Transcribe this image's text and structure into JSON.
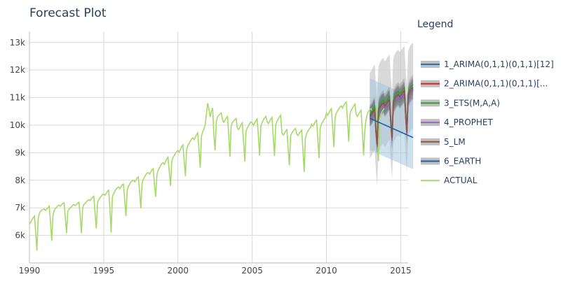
{
  "chart_data": {
    "type": "line",
    "title": "Forecast Plot",
    "xlabel": "",
    "ylabel": "",
    "xlim": [
      1990,
      2015.5
    ],
    "ylim": [
      5000,
      13400
    ],
    "x_ticks": [
      1990,
      1995,
      2000,
      2005,
      2010,
      2015
    ],
    "x_tick_labels": [
      "1990",
      "1995",
      "2000",
      "2005",
      "2010",
      "2015"
    ],
    "y_ticks": [
      6000,
      7000,
      8000,
      9000,
      10000,
      11000,
      12000,
      13000
    ],
    "y_tick_labels": [
      "6k",
      "7k",
      "8k",
      "9k",
      "10k",
      "11k",
      "12k",
      "13k"
    ],
    "grid": true,
    "legend_title": "Legend",
    "legend_position": "right",
    "colors": {
      "arima1": "#1f77b4",
      "arima2": "#d62728",
      "ets": "#2ca02c",
      "prophet": "#9467bd",
      "lm": "#8c564b",
      "earth": "#1f5fa8",
      "actual": "#a6d96a"
    },
    "legend": [
      {
        "key": "arima1",
        "label": "1_ARIMA(0,1,1)(0,1,1)[12]"
      },
      {
        "key": "arima2",
        "label": "2_ARIMA(0,1,1)(0,1,1)[..."
      },
      {
        "key": "ets",
        "label": "3_ETS(M,A,A)"
      },
      {
        "key": "prophet",
        "label": "4_PROPHET"
      },
      {
        "key": "lm",
        "label": "5_LM"
      },
      {
        "key": "earth",
        "label": "6_EARTH"
      },
      {
        "key": "actual",
        "label": "ACTUAL"
      }
    ],
    "actual": {
      "name": "ACTUAL",
      "x_start": 1990.0,
      "step": 0.0833333,
      "values": [
        6400,
        6480,
        6560,
        6640,
        6700,
        6160,
        5450,
        6600,
        6800,
        6880,
        6920,
        6940,
        6960,
        6900,
        6960,
        7000,
        7060,
        6480,
        5800,
        6720,
        6900,
        6980,
        7020,
        7080,
        7100,
        7060,
        7120,
        7160,
        7180,
        6620,
        6080,
        6860,
        6960,
        7000,
        7040,
        7100,
        7120,
        7080,
        7120,
        7180,
        7200,
        6700,
        6080,
        7000,
        7120,
        7160,
        7220,
        7260,
        7300,
        7260,
        7320,
        7380,
        7420,
        6820,
        6250,
        7180,
        7300,
        7360,
        7420,
        7480,
        7500,
        7460,
        7520,
        7600,
        7640,
        7000,
        6100,
        7380,
        7520,
        7600,
        7680,
        7720,
        7760,
        7700,
        7760,
        7840,
        7860,
        7260,
        6700,
        7640,
        7780,
        7860,
        7940,
        7980,
        8000,
        7940,
        8000,
        8080,
        8120,
        7560,
        6980,
        7900,
        8040,
        8120,
        8200,
        8260,
        8280,
        8220,
        8300,
        8380,
        8420,
        7860,
        7400,
        8200,
        8360,
        8440,
        8540,
        8600,
        8640,
        8580,
        8680,
        8780,
        8840,
        8300,
        7800,
        8680,
        8820,
        8900,
        8980,
        9040,
        9080,
        9020,
        9120,
        9220,
        9280,
        8700,
        8150,
        9100,
        9260,
        9340,
        9420,
        9500,
        9540,
        9480,
        9560,
        9660,
        9720,
        9100,
        8460,
        9600,
        9760,
        9860,
        10000,
        10420,
        10800,
        10600,
        10300,
        10500,
        10620,
        9700,
        9080,
        10140,
        10300,
        10360,
        10400,
        10440,
        10200,
        10100,
        10180,
        10260,
        10320,
        9680,
        8850,
        9960,
        10100,
        10160,
        10200,
        10240,
        9900,
        9840,
        9920,
        10020,
        10080,
        9400,
        8680,
        9760,
        9900,
        9980,
        10060,
        10120,
        10080,
        10000,
        10080,
        10160,
        10220,
        9600,
        8900,
        9960,
        10100,
        10180,
        10260,
        10320,
        10140,
        10060,
        10140,
        10220,
        10280,
        9600,
        8880,
        10000,
        10140,
        10220,
        10300,
        10360,
        9720,
        9640,
        9700,
        9780,
        9840,
        9200,
        8540,
        9600,
        9720,
        9780,
        9840,
        9880,
        9680,
        9620,
        9700,
        9760,
        9820,
        9100,
        8300,
        9540,
        9700,
        9780,
        9860,
        9900,
        10040,
        9960,
        10040,
        10120,
        10180,
        9520,
        8800,
        9900,
        10040,
        10120,
        10200,
        10260,
        10440,
        10360,
        10440,
        10540,
        10600,
        9900,
        9200,
        10280,
        10440,
        10520,
        10600,
        10660,
        10700,
        10620,
        10720,
        10800,
        10840,
        10200,
        9400,
        10400,
        10540,
        10620,
        10700,
        10760,
        10400,
        10320,
        10400,
        10480,
        10540,
        9800,
        8900,
        9800,
        10200,
        10400,
        10500,
        10560,
        10600,
        10500,
        10580,
        10640,
        10680,
        9900,
        8700,
        10200,
        10400,
        10500,
        10560,
        10620
      ]
    },
    "forecast": {
      "x_start": 2012.9167,
      "step": 0.0833333,
      "series": [
        {
          "name": "1_ARIMA(0,1,1)(0,1,1)[12]",
          "key": "arima1",
          "values": [
            10350,
            10380,
            10450,
            10550,
            10600,
            9800,
            9300,
            10500,
            10650,
            10720,
            10780,
            10820,
            10700,
            10720,
            10800,
            10880,
            10920,
            10100,
            9500,
            10750,
            10900,
            10980,
            11040,
            11080,
            11000,
            11020,
            11080,
            11150,
            11200,
            10350,
            9700,
            11000,
            11150,
            11220,
            11280,
            11320
          ]
        },
        {
          "name": "2_ARIMA(0,1,1)(0,1,1)[...",
          "key": "arima2",
          "values": [
            10300,
            10340,
            10400,
            10500,
            10560,
            9750,
            9250,
            10450,
            10600,
            10680,
            10740,
            10780,
            10650,
            10680,
            10760,
            10840,
            10880,
            10050,
            9450,
            10700,
            10850,
            10930,
            11000,
            11040,
            10950,
            10980,
            11040,
            11110,
            11160,
            10300,
            9650,
            10950,
            11100,
            11180,
            11240,
            11280
          ]
        },
        {
          "name": "3_ETS(M,A,A)",
          "key": "ets",
          "values": [
            10400,
            10440,
            10520,
            10620,
            10680,
            9880,
            9380,
            10580,
            10740,
            10820,
            10880,
            10920,
            10800,
            10830,
            10910,
            10990,
            11040,
            10220,
            9620,
            10880,
            11040,
            11120,
            11180,
            11220,
            11150,
            11180,
            11240,
            11310,
            11360,
            10500,
            9850,
            11150,
            11300,
            11380,
            11440,
            11480
          ]
        },
        {
          "name": "4_PROPHET",
          "key": "prophet",
          "values": [
            10200,
            10260,
            10340,
            10440,
            10500,
            9700,
            9200,
            10400,
            10560,
            10640,
            10700,
            10740,
            10620,
            10660,
            10740,
            10820,
            10860,
            10040,
            9440,
            10700,
            10860,
            10940,
            11000,
            11040,
            10960,
            11000,
            11060,
            11130,
            11180,
            10320,
            9660,
            10960,
            11120,
            11200,
            11260,
            11300
          ]
        },
        {
          "name": "5_LM",
          "key": "lm",
          "values": [
            10300,
            10340,
            10420,
            10520,
            10580,
            9780,
            9280,
            10480,
            10640,
            10720,
            10780,
            10820,
            10700,
            10740,
            10820,
            10900,
            10940,
            10120,
            9520,
            10780,
            10940,
            11020,
            11080,
            11120,
            11040,
            11080,
            11140,
            11210,
            11260,
            10400,
            9740,
            11040,
            11200,
            11280,
            11340,
            11380
          ]
        },
        {
          "name": "6_EARTH",
          "key": "earth",
          "values": [
            10250,
            10230,
            10210,
            10190,
            10170,
            10150,
            10130,
            10110,
            10090,
            10070,
            10050,
            10030,
            10010,
            9990,
            9970,
            9950,
            9930,
            9910,
            9890,
            9870,
            9850,
            9830,
            9810,
            9790,
            9770,
            9750,
            9730,
            9710,
            9690,
            9670,
            9650,
            9630,
            9610,
            9590,
            9570,
            9550
          ]
        }
      ],
      "prophet_band": {
        "lower_offset": 1400,
        "upper_offset": 1700
      },
      "earth_band": {
        "lower_offset": 1150,
        "upper_offset": 1450
      },
      "arima_band": {
        "lower_offset": 350,
        "upper_offset": 350
      }
    }
  }
}
